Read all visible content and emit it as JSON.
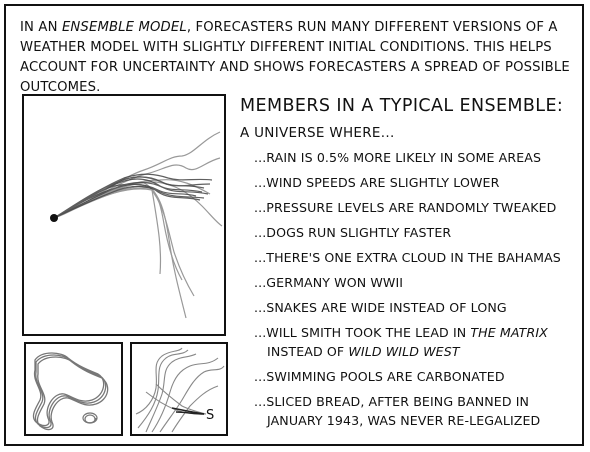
{
  "intro": {
    "part1": "In an ",
    "emphasis": "ensemble model",
    "part2": ", forecasters run many different versions of a weather model with slightly different initial conditions. This helps account for uncertainty and shows forecasters a spread of possible outcomes."
  },
  "heading": "Members in a typical ensemble:",
  "subheading": "A universe where...",
  "members": [
    {
      "text": "...Rain is 0.5% more likely in some areas"
    },
    {
      "text": "...Wind speeds are slightly lower"
    },
    {
      "text": "...Pressure levels are randomly tweaked"
    },
    {
      "text": "...Dogs run slightly faster"
    },
    {
      "text": "...There's one extra cloud in the Bahamas"
    },
    {
      "text": "...Germany won WWII"
    },
    {
      "text": "...Snakes are wide instead of long"
    },
    {
      "line1a": "...Will Smith took the lead in ",
      "line1em": "The Matrix",
      "line2a": "instead of ",
      "line2em": "Wild Wild West"
    },
    {
      "text": "...Swimming pools are carbonated"
    },
    {
      "line1": "...Sliced bread, after being banned in",
      "line2": "January 1943, was never re-legalized"
    }
  ],
  "panels": {
    "snake_label": "S"
  },
  "colors": {
    "ink": "#111111",
    "track_gray": "#9a9a9a",
    "dark_track": "#444444"
  }
}
